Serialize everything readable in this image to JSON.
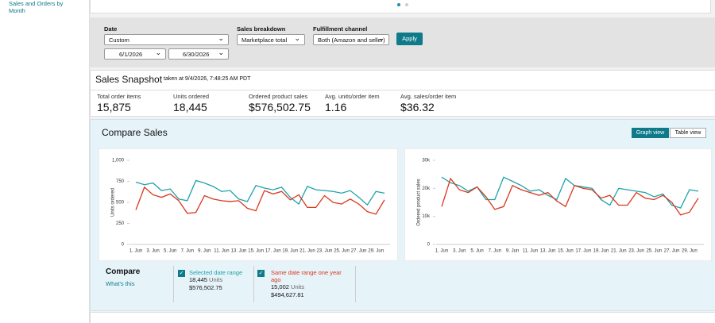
{
  "sidebar": {
    "link": "Sales and Orders by Month"
  },
  "filters": {
    "date_label": "Date",
    "date_value": "Custom",
    "start_date": "6/1/2026",
    "end_date": "6/30/2026",
    "breakdown_label": "Sales breakdown",
    "breakdown_value": "Marketplace total",
    "channel_label": "Fulfillment channel",
    "channel_value": "Both (Amazon and seller)",
    "apply": "Apply"
  },
  "snapshot": {
    "title": "Sales Snapshot",
    "taken_at": "taken at 9/4/2026, 7:48:25 AM PDT",
    "metrics": [
      {
        "label": "Total order items",
        "value": "15,875"
      },
      {
        "label": "Units ordered",
        "value": "18,445"
      },
      {
        "label": "Ordered product sales",
        "value": "$576,502.75"
      },
      {
        "label": "Avg. units/order item",
        "value": "1.16"
      },
      {
        "label": "Avg. sales/order item",
        "value": "$36.32"
      }
    ]
  },
  "compare_sales": {
    "title": "Compare Sales",
    "graph_view": "Graph view",
    "table_view": "Table view",
    "compare": "Compare",
    "whats_this": "What's this",
    "legend": [
      {
        "units": "18,445",
        "units_label": "Units",
        "sales": "$576,502.75"
      },
      {
        "units": "15,002",
        "units_label": "Units",
        "sales": "$494,627.81"
      }
    ]
  },
  "chart_data": [
    {
      "type": "line",
      "y_label": "Units ordered",
      "categories": [
        "1. Jun",
        null,
        "3. Jun",
        null,
        "5. Jun",
        null,
        "7. Jun",
        null,
        "9. Jun",
        null,
        "11. Jun",
        null,
        "13. Jun",
        null,
        "15. Jun",
        null,
        "17. Jun",
        null,
        "19. Jun",
        null,
        "21. Jun",
        null,
        "23. Jun",
        null,
        "25. Jun",
        null,
        "27. Jun",
        null,
        "29. Jun",
        null
      ],
      "ylim": [
        0,
        1000
      ],
      "yticks": [
        0,
        250,
        500,
        750,
        {
          "value": 1000,
          "label": "1,000"
        }
      ],
      "series": [
        {
          "name": "Selected date range",
          "color": "#1fa3aa",
          "values": [
            740,
            710,
            730,
            640,
            660,
            540,
            520,
            760,
            730,
            690,
            630,
            640,
            540,
            510,
            700,
            670,
            650,
            680,
            560,
            480,
            690,
            650,
            640,
            630,
            610,
            640,
            560,
            470,
            630,
            610
          ]
        },
        {
          "name": "Same date range one year ago",
          "color": "#d9381e",
          "values": [
            410,
            680,
            590,
            560,
            600,
            520,
            370,
            380,
            580,
            540,
            520,
            510,
            520,
            430,
            400,
            640,
            600,
            630,
            530,
            590,
            440,
            440,
            580,
            500,
            480,
            540,
            480,
            390,
            360,
            530
          ]
        }
      ]
    },
    {
      "type": "line",
      "y_label": "Ordered product sales",
      "categories": [
        "1. Jun",
        null,
        "3. Jun",
        null,
        "5. Jun",
        null,
        "7. Jun",
        null,
        "9. Jun",
        null,
        "11. Jun",
        null,
        "13. Jun",
        null,
        "15. Jun",
        null,
        "17. Jun",
        null,
        "19. Jun",
        null,
        "21. Jun",
        null,
        "23. Jun",
        null,
        "25. Jun",
        null,
        "27. Jun",
        null,
        "29. Jun",
        null
      ],
      "ylim": [
        0,
        30000
      ],
      "yticks": [
        0,
        {
          "value": 10000,
          "label": "10k"
        },
        {
          "value": 20000,
          "label": "20k"
        },
        {
          "value": 30000,
          "label": "30k"
        }
      ],
      "series": [
        {
          "name": "Selected date range",
          "color": "#1fa3aa",
          "values": [
            24000,
            22000,
            21000,
            19000,
            20500,
            16000,
            16000,
            24000,
            22500,
            21000,
            19000,
            19500,
            17500,
            16000,
            23500,
            21000,
            20500,
            20000,
            16000,
            14000,
            20000,
            19500,
            19000,
            18500,
            17000,
            18000,
            14000,
            13000,
            19500,
            19000
          ]
        },
        {
          "name": "Same date range one year ago",
          "color": "#d9381e",
          "values": [
            13500,
            23500,
            19500,
            18500,
            20500,
            17000,
            12500,
            13500,
            21000,
            19500,
            18500,
            17500,
            18500,
            15500,
            13500,
            21000,
            20000,
            19500,
            16500,
            17500,
            14000,
            14000,
            18500,
            16500,
            16000,
            17500,
            15000,
            10500,
            11500,
            16500
          ]
        }
      ]
    }
  ]
}
